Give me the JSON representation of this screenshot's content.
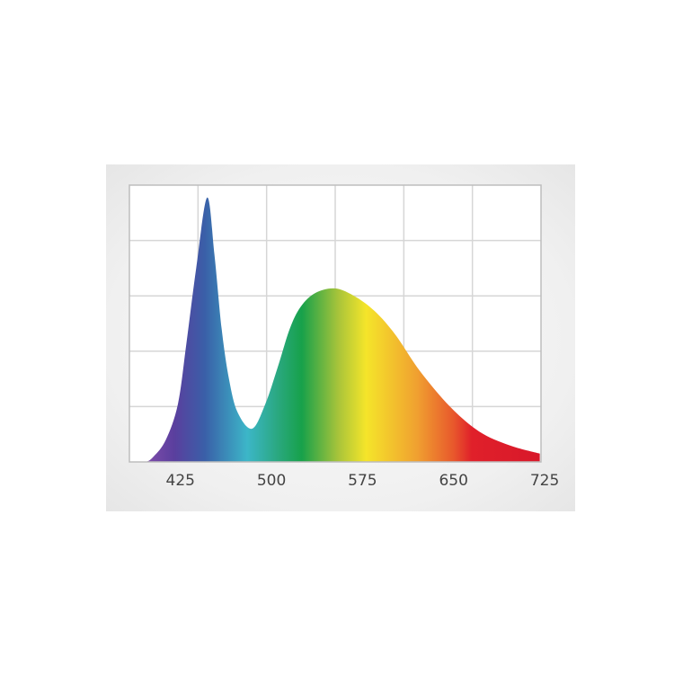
{
  "chart_data": {
    "type": "area",
    "title": "",
    "xlabel": "",
    "ylabel": "",
    "xlim": [
      383,
      722
    ],
    "ylim": [
      0,
      1
    ],
    "grid": true,
    "x_ticks": [
      425,
      500,
      575,
      650,
      725
    ],
    "x_tick_labels": [
      "425",
      "500",
      "575",
      "650",
      "725"
    ],
    "fill": "visible-spectrum gradient",
    "series": [
      {
        "x": [
          383,
          396,
          403,
          413,
          423,
          430,
          438,
          447,
          453,
          459,
          465,
          472,
          484,
          495,
          505,
          515,
          524,
          536,
          552,
          568,
          585,
          602,
          622,
          647,
          671,
          696,
          721
        ],
        "y": [
          0,
          0.0,
          0.02,
          0.08,
          0.21,
          0.43,
          0.7,
          0.955,
          0.75,
          0.48,
          0.3,
          0.18,
          0.12,
          0.21,
          0.34,
          0.48,
          0.56,
          0.61,
          0.627,
          0.6,
          0.545,
          0.46,
          0.33,
          0.2,
          0.11,
          0.06,
          0.03
        ]
      }
    ],
    "spectrum_colors": [
      {
        "nm": 400,
        "color": "#7a4aa8"
      },
      {
        "nm": 420,
        "color": "#5a3f9e"
      },
      {
        "nm": 445,
        "color": "#3a5fa8"
      },
      {
        "nm": 480,
        "color": "#3cb6c8"
      },
      {
        "nm": 505,
        "color": "#2aa880"
      },
      {
        "nm": 525,
        "color": "#17a14a"
      },
      {
        "nm": 555,
        "color": "#a8c43a"
      },
      {
        "nm": 578,
        "color": "#f5e52a"
      },
      {
        "nm": 620,
        "color": "#f0a030"
      },
      {
        "nm": 650,
        "color": "#e8582c"
      },
      {
        "nm": 665,
        "color": "#e0202a"
      },
      {
        "nm": 722,
        "color": "#d8182a"
      }
    ]
  }
}
